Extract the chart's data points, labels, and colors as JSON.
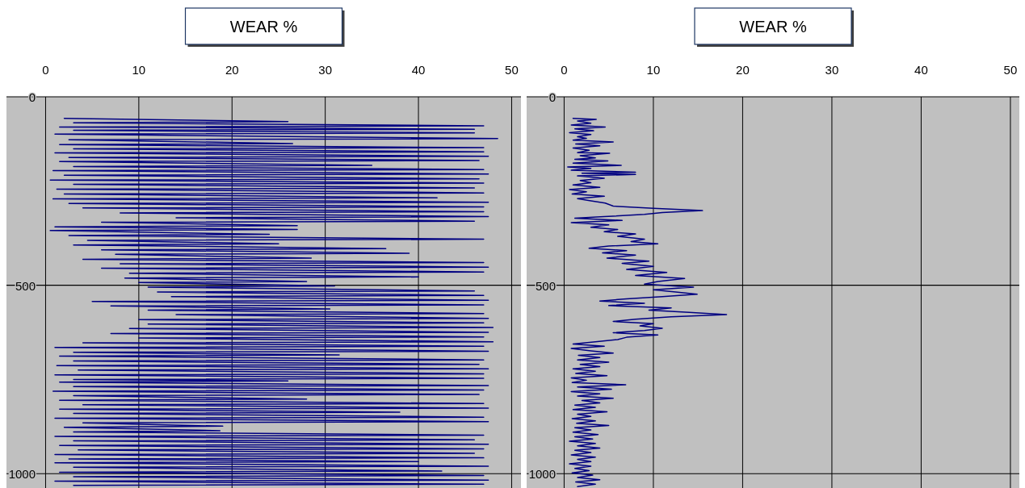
{
  "chart_data": [
    {
      "type": "line",
      "title": "WEAR %",
      "xlim": [
        -4.2,
        51
      ],
      "xticks": [
        0,
        10,
        20,
        30,
        40,
        50
      ],
      "ylim": [
        1038,
        0
      ],
      "yticks": [
        0,
        500,
        1000
      ],
      "grid": true,
      "series": [
        {
          "color": "#000080",
          "x": [
            2,
            26,
            3,
            47,
            1.5,
            46,
            3,
            46,
            1,
            48.5,
            2.5,
            26.5,
            1.5,
            47,
            3,
            47,
            1,
            47.5,
            2.5,
            46.5,
            1.5,
            35,
            3,
            47,
            0.8,
            47.5,
            2,
            46.5,
            0.5,
            47,
            3,
            46,
            1.2,
            47,
            2,
            42,
            0.8,
            47.5,
            2.5,
            47,
            4,
            47,
            8,
            47.5,
            14,
            46,
            6,
            27,
            1,
            27,
            0.5,
            24,
            2.5,
            47,
            4.5,
            25,
            3,
            36.5,
            6,
            39,
            7.5,
            28.5,
            4,
            47,
            8,
            47.5,
            6,
            47,
            9,
            40,
            8.5,
            28,
            10,
            31,
            11,
            46,
            12,
            47,
            13.5,
            47.5,
            5,
            47,
            7,
            30.5,
            11,
            47,
            14,
            47.5,
            10,
            47,
            11,
            48,
            9,
            47.5,
            7,
            47,
            10,
            48,
            4,
            47,
            1,
            47.5,
            3,
            31.5,
            1.5,
            47,
            3,
            46.5,
            1.2,
            47.5,
            3.5,
            47,
            1,
            47,
            3,
            26,
            1.5,
            47.5,
            3,
            47,
            0.8,
            46.5,
            3,
            28,
            1.5,
            47,
            4,
            47.5,
            1.5,
            38,
            3,
            47,
            1,
            47.5,
            4,
            19,
            2,
            18.7,
            3,
            47,
            1,
            46,
            3,
            47.5,
            1.5,
            47,
            3.5,
            46,
            1,
            47,
            2.5,
            40,
            1,
            47.5,
            3,
            42.5,
            1.5,
            47,
            3,
            47.5,
            1,
            47,
            3
          ],
          "values": [
            57,
            66,
            69,
            77,
            80,
            86,
            89,
            96,
            99,
            111,
            114,
            124,
            127,
            135,
            138,
            146,
            149,
            158,
            161,
            169,
            172,
            182,
            185,
            193,
            196,
            205,
            208,
            218,
            221,
            229,
            232,
            242,
            245,
            255,
            258,
            268,
            271,
            280,
            283,
            292,
            295,
            305,
            308,
            318,
            321,
            330,
            333,
            342,
            345,
            352,
            355,
            365,
            368,
            378,
            381,
            390,
            393,
            403,
            406,
            415,
            418,
            428,
            431,
            440,
            443,
            452,
            455,
            465,
            468,
            478,
            481,
            490,
            493,
            502,
            505,
            515,
            518,
            527,
            530,
            540,
            543,
            552,
            555,
            563,
            566,
            575,
            578,
            588,
            591,
            600,
            603,
            612,
            615,
            625,
            628,
            637,
            640,
            650,
            653,
            662,
            665,
            675,
            678,
            685,
            688,
            698,
            701,
            710,
            713,
            722,
            725,
            735,
            738,
            747,
            750,
            754,
            757,
            766,
            769,
            778,
            781,
            790,
            793,
            802,
            805,
            814,
            817,
            826,
            829,
            837,
            840,
            850,
            853,
            862,
            865,
            874,
            877,
            886,
            889,
            898,
            901,
            910,
            913,
            922,
            925,
            934,
            937,
            946,
            949,
            958,
            961,
            968,
            971,
            980,
            983,
            993,
            996,
            1005,
            1008,
            1017,
            1020,
            1028,
            1031
          ]
        }
      ]
    },
    {
      "type": "line",
      "title": "WEAR %",
      "xlim": [
        -4.2,
        51
      ],
      "xticks": [
        0,
        10,
        20,
        30,
        40,
        50
      ],
      "ylim": [
        1038,
        0
      ],
      "yticks": [
        0,
        500,
        1000
      ],
      "grid": true,
      "series": [
        {
          "color": "#000080",
          "x": [
            1,
            3.6,
            1.5,
            3,
            0.8,
            4.6,
            1.2,
            3.3,
            0.6,
            3,
            1.5,
            2.5,
            1,
            5.5,
            1.3,
            4,
            1,
            2.8,
            1.5,
            5.1,
            1.8,
            3.5,
            1.2,
            4.9,
            1,
            6.4,
            0.4,
            3,
            0.8,
            8,
            2,
            8,
            1.5,
            4.5,
            1.8,
            3,
            1,
            4,
            0.6,
            2.5,
            0.9,
            4.5,
            1.5,
            3,
            4.6,
            5.5,
            10,
            15.5,
            11,
            9,
            4.5,
            1.2,
            6.5,
            0.8,
            5,
            3,
            6,
            4.5,
            8,
            6,
            9,
            7.5,
            10.5,
            5,
            2.8,
            7,
            4.3,
            8,
            4.8,
            9.5,
            6.5,
            10,
            7,
            11.5,
            8,
            13.5,
            10.5,
            9,
            14.5,
            10,
            12.5,
            14.9,
            11,
            7,
            4,
            9,
            5,
            12,
            9.5,
            14,
            18.2,
            12,
            8,
            5.5,
            10,
            8.5,
            11,
            9,
            5.5,
            10.5,
            7,
            6,
            3.5,
            1,
            4.5,
            0.8,
            3,
            5.5,
            1.6,
            4,
            1.5,
            5,
            1.8,
            4,
            1,
            3.5,
            1.3,
            4.8,
            0.8,
            2.5,
            0.9,
            6.9,
            1.5,
            5.3,
            0.8,
            4,
            1.5,
            5.5,
            2,
            4,
            1.2,
            3.5,
            1,
            4.8,
            1.5,
            3,
            0.9,
            3.5,
            1.4,
            5,
            1.2,
            3,
            1,
            3.8,
            1.2,
            3.2,
            0.6,
            3.5,
            1.5,
            4,
            1.2,
            3,
            0.8,
            3.5,
            1.5,
            3,
            0.6,
            3,
            1.2,
            2.8,
            0.9,
            3.2,
            1.5,
            4,
            1.3,
            3.5,
            1.5
          ],
          "values": [
            57,
            60,
            64,
            70,
            75,
            80,
            85,
            90,
            95,
            100,
            106,
            110,
            115,
            120,
            125,
            130,
            136,
            142,
            148,
            150,
            156,
            162,
            166,
            170,
            176,
            182,
            186,
            190,
            195,
            200,
            203,
            206,
            210,
            216,
            222,
            228,
            234,
            240,
            246,
            252,
            258,
            264,
            270,
            276,
            282,
            290,
            296,
            302,
            307,
            312,
            318,
            322,
            328,
            334,
            340,
            346,
            352,
            358,
            364,
            370,
            378,
            384,
            390,
            396,
            402,
            408,
            414,
            420,
            428,
            436,
            442,
            450,
            458,
            466,
            474,
            482,
            490,
            497,
            505,
            512,
            518,
            524,
            530,
            536,
            542,
            548,
            554,
            560,
            566,
            572,
            578,
            584,
            590,
            596,
            602,
            608,
            614,
            620,
            626,
            632,
            638,
            644,
            650,
            656,
            662,
            668,
            674,
            680,
            686,
            692,
            698,
            704,
            710,
            716,
            722,
            728,
            734,
            740,
            746,
            752,
            758,
            764,
            770,
            776,
            782,
            788,
            794,
            800,
            806,
            812,
            818,
            824,
            830,
            836,
            842,
            848,
            854,
            860,
            866,
            872,
            878,
            884,
            890,
            896,
            902,
            908,
            914,
            920,
            926,
            932,
            938,
            944,
            950,
            956,
            962,
            968,
            974,
            980,
            986,
            992,
            998,
            1004,
            1010,
            1016,
            1022,
            1028,
            1034
          ]
        }
      ]
    }
  ]
}
